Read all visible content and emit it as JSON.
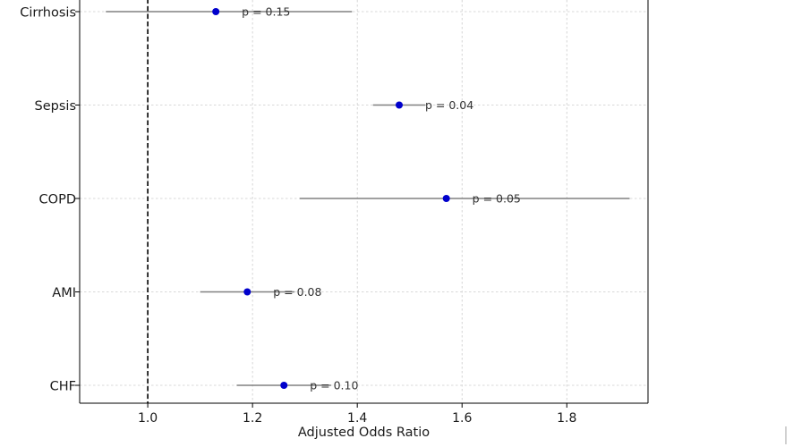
{
  "chart_data": {
    "type": "forest",
    "title": "",
    "xlabel": "Adjusted Odds Ratio",
    "ylabel": "",
    "xlim": [
      0.87,
      1.955
    ],
    "xticks": [
      1.0,
      1.2,
      1.4,
      1.6,
      1.8
    ],
    "xtick_labels": [
      "1.0",
      "1.2",
      "1.4",
      "1.6",
      "1.8"
    ],
    "reference_line": 1.0,
    "grid": true,
    "colors": {
      "point": "#0000cc",
      "ci_line": "#808080",
      "reference": "#000000",
      "grid": "#cccccc"
    },
    "rows": [
      {
        "category": "Cirrhosis",
        "or": 1.13,
        "ci_low": 0.92,
        "ci_high": 1.39,
        "p_label": "p = 0.15"
      },
      {
        "category": "Sepsis",
        "or": 1.48,
        "ci_low": 1.43,
        "ci_high": 1.53,
        "p_label": "p = 0.04"
      },
      {
        "category": "COPD",
        "or": 1.57,
        "ci_low": 1.29,
        "ci_high": 1.92,
        "p_label": "p = 0.05"
      },
      {
        "category": "AMI",
        "or": 1.19,
        "ci_low": 1.1,
        "ci_high": 1.28,
        "p_label": "p = 0.08"
      },
      {
        "category": "CHF",
        "or": 1.26,
        "ci_low": 1.17,
        "ci_high": 1.35,
        "p_label": "p = 0.10"
      }
    ]
  }
}
